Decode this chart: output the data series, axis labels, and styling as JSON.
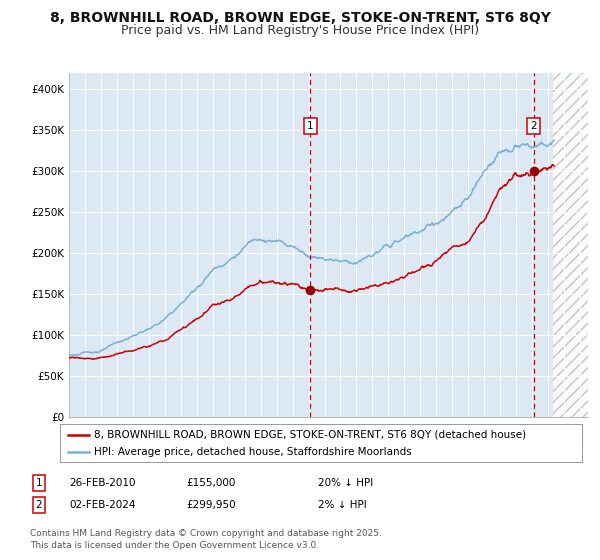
{
  "title": "8, BROWNHILL ROAD, BROWN EDGE, STOKE-ON-TRENT, ST6 8QY",
  "subtitle": "Price paid vs. HM Land Registry's House Price Index (HPI)",
  "background_color": "#ffffff",
  "plot_bg_color": "#dce9f5",
  "grid_color": "#ffffff",
  "red_line_color": "#cc0000",
  "blue_line_color": "#7ab0d4",
  "marker_color": "#990000",
  "dashed_line_color": "#cc0000",
  "annotation1_date": "26-FEB-2010",
  "annotation1_price": "£155,000",
  "annotation1_hpi": "20% ↓ HPI",
  "annotation1_year": 2010.12,
  "annotation1_value": 155000,
  "annotation2_date": "02-FEB-2024",
  "annotation2_price": "£299,950",
  "annotation2_hpi": "2% ↓ HPI",
  "annotation2_year": 2024.09,
  "annotation2_value": 299950,
  "legend_entry1": "8, BROWNHILL ROAD, BROWN EDGE, STOKE-ON-TRENT, ST6 8QY (detached house)",
  "legend_entry2": "HPI: Average price, detached house, Staffordshire Moorlands",
  "footer": "Contains HM Land Registry data © Crown copyright and database right 2025.\nThis data is licensed under the Open Government Licence v3.0.",
  "ylim": [
    0,
    420000
  ],
  "xlim_start": 1995.0,
  "xlim_end": 2027.5,
  "yticks": [
    0,
    50000,
    100000,
    150000,
    200000,
    250000,
    300000,
    350000,
    400000
  ],
  "ytick_labels": [
    "£0",
    "£50K",
    "£100K",
    "£150K",
    "£200K",
    "£250K",
    "£300K",
    "£350K",
    "£400K"
  ],
  "xticks": [
    1995,
    1996,
    1997,
    1998,
    1999,
    2000,
    2001,
    2002,
    2003,
    2004,
    2005,
    2006,
    2007,
    2008,
    2009,
    2010,
    2011,
    2012,
    2013,
    2014,
    2015,
    2016,
    2017,
    2018,
    2019,
    2020,
    2021,
    2022,
    2023,
    2024,
    2025,
    2026,
    2027
  ],
  "title_fontsize": 10,
  "subtitle_fontsize": 9,
  "tick_fontsize": 7.5,
  "legend_fontsize": 7.5,
  "footer_fontsize": 6.5,
  "hatch_start": 2025.3
}
